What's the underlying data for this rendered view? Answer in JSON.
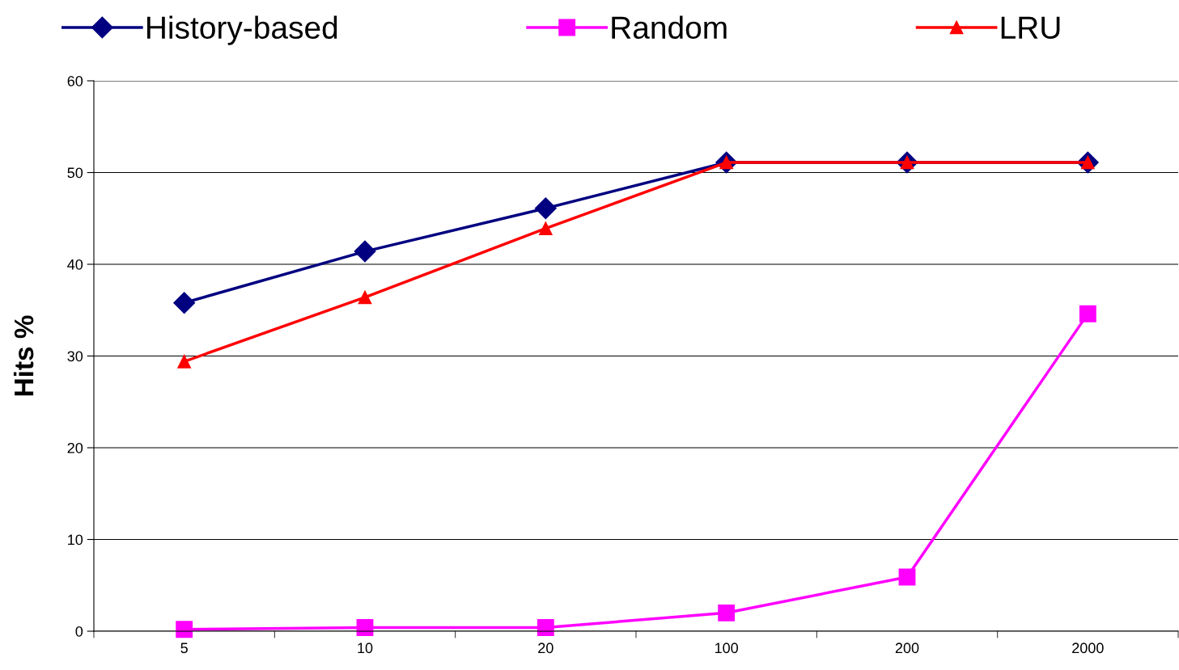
{
  "chart_data": {
    "type": "line",
    "ylabel": "Hits %",
    "categories": [
      "5",
      "10",
      "20",
      "100",
      "200",
      "2000"
    ],
    "series": [
      {
        "name": "History-based",
        "color": "#000080",
        "marker": "diamond",
        "values": [
          35.8,
          41.4,
          46.1,
          51.1,
          51.1,
          51.1
        ]
      },
      {
        "name": "Random",
        "color": "#ff00ff",
        "marker": "square",
        "values": [
          0.2,
          0.4,
          0.4,
          2.0,
          5.9,
          34.6
        ]
      },
      {
        "name": "LRU",
        "color": "#ff0000",
        "marker": "triangle",
        "values": [
          29.4,
          36.4,
          43.9,
          51.1,
          51.1,
          51.1
        ]
      }
    ],
    "ylim": [
      0,
      60
    ],
    "yticks": [
      0,
      10,
      20,
      30,
      40,
      50,
      60
    ],
    "grid": "y",
    "legend": "top",
    "line_style": "solid"
  }
}
